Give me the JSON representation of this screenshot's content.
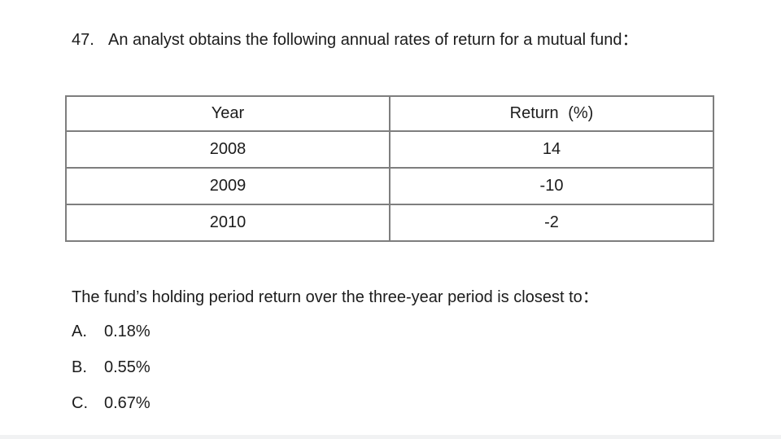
{
  "question": {
    "number": "47.",
    "intro": "An analyst obtains the following annual rates of return for a mutual fund：",
    "prompt": "The fund’s holding period return over the three-year period is closest to："
  },
  "table": {
    "headers": [
      "Year",
      "Return (%)"
    ],
    "rows": [
      [
        "2008",
        "14"
      ],
      [
        "2009",
        "-10"
      ],
      [
        "2010",
        "-2"
      ]
    ]
  },
  "choices": [
    {
      "label": "A.",
      "value": "0.18%"
    },
    {
      "label": "B.",
      "value": "0.55%"
    },
    {
      "label": "C.",
      "value": "0.67%"
    }
  ],
  "colors": {
    "background": "#ffffff",
    "ink": "#1c1c1c",
    "table_border": "#7e7e7e",
    "bottom_bar": "#f1f2f3"
  }
}
